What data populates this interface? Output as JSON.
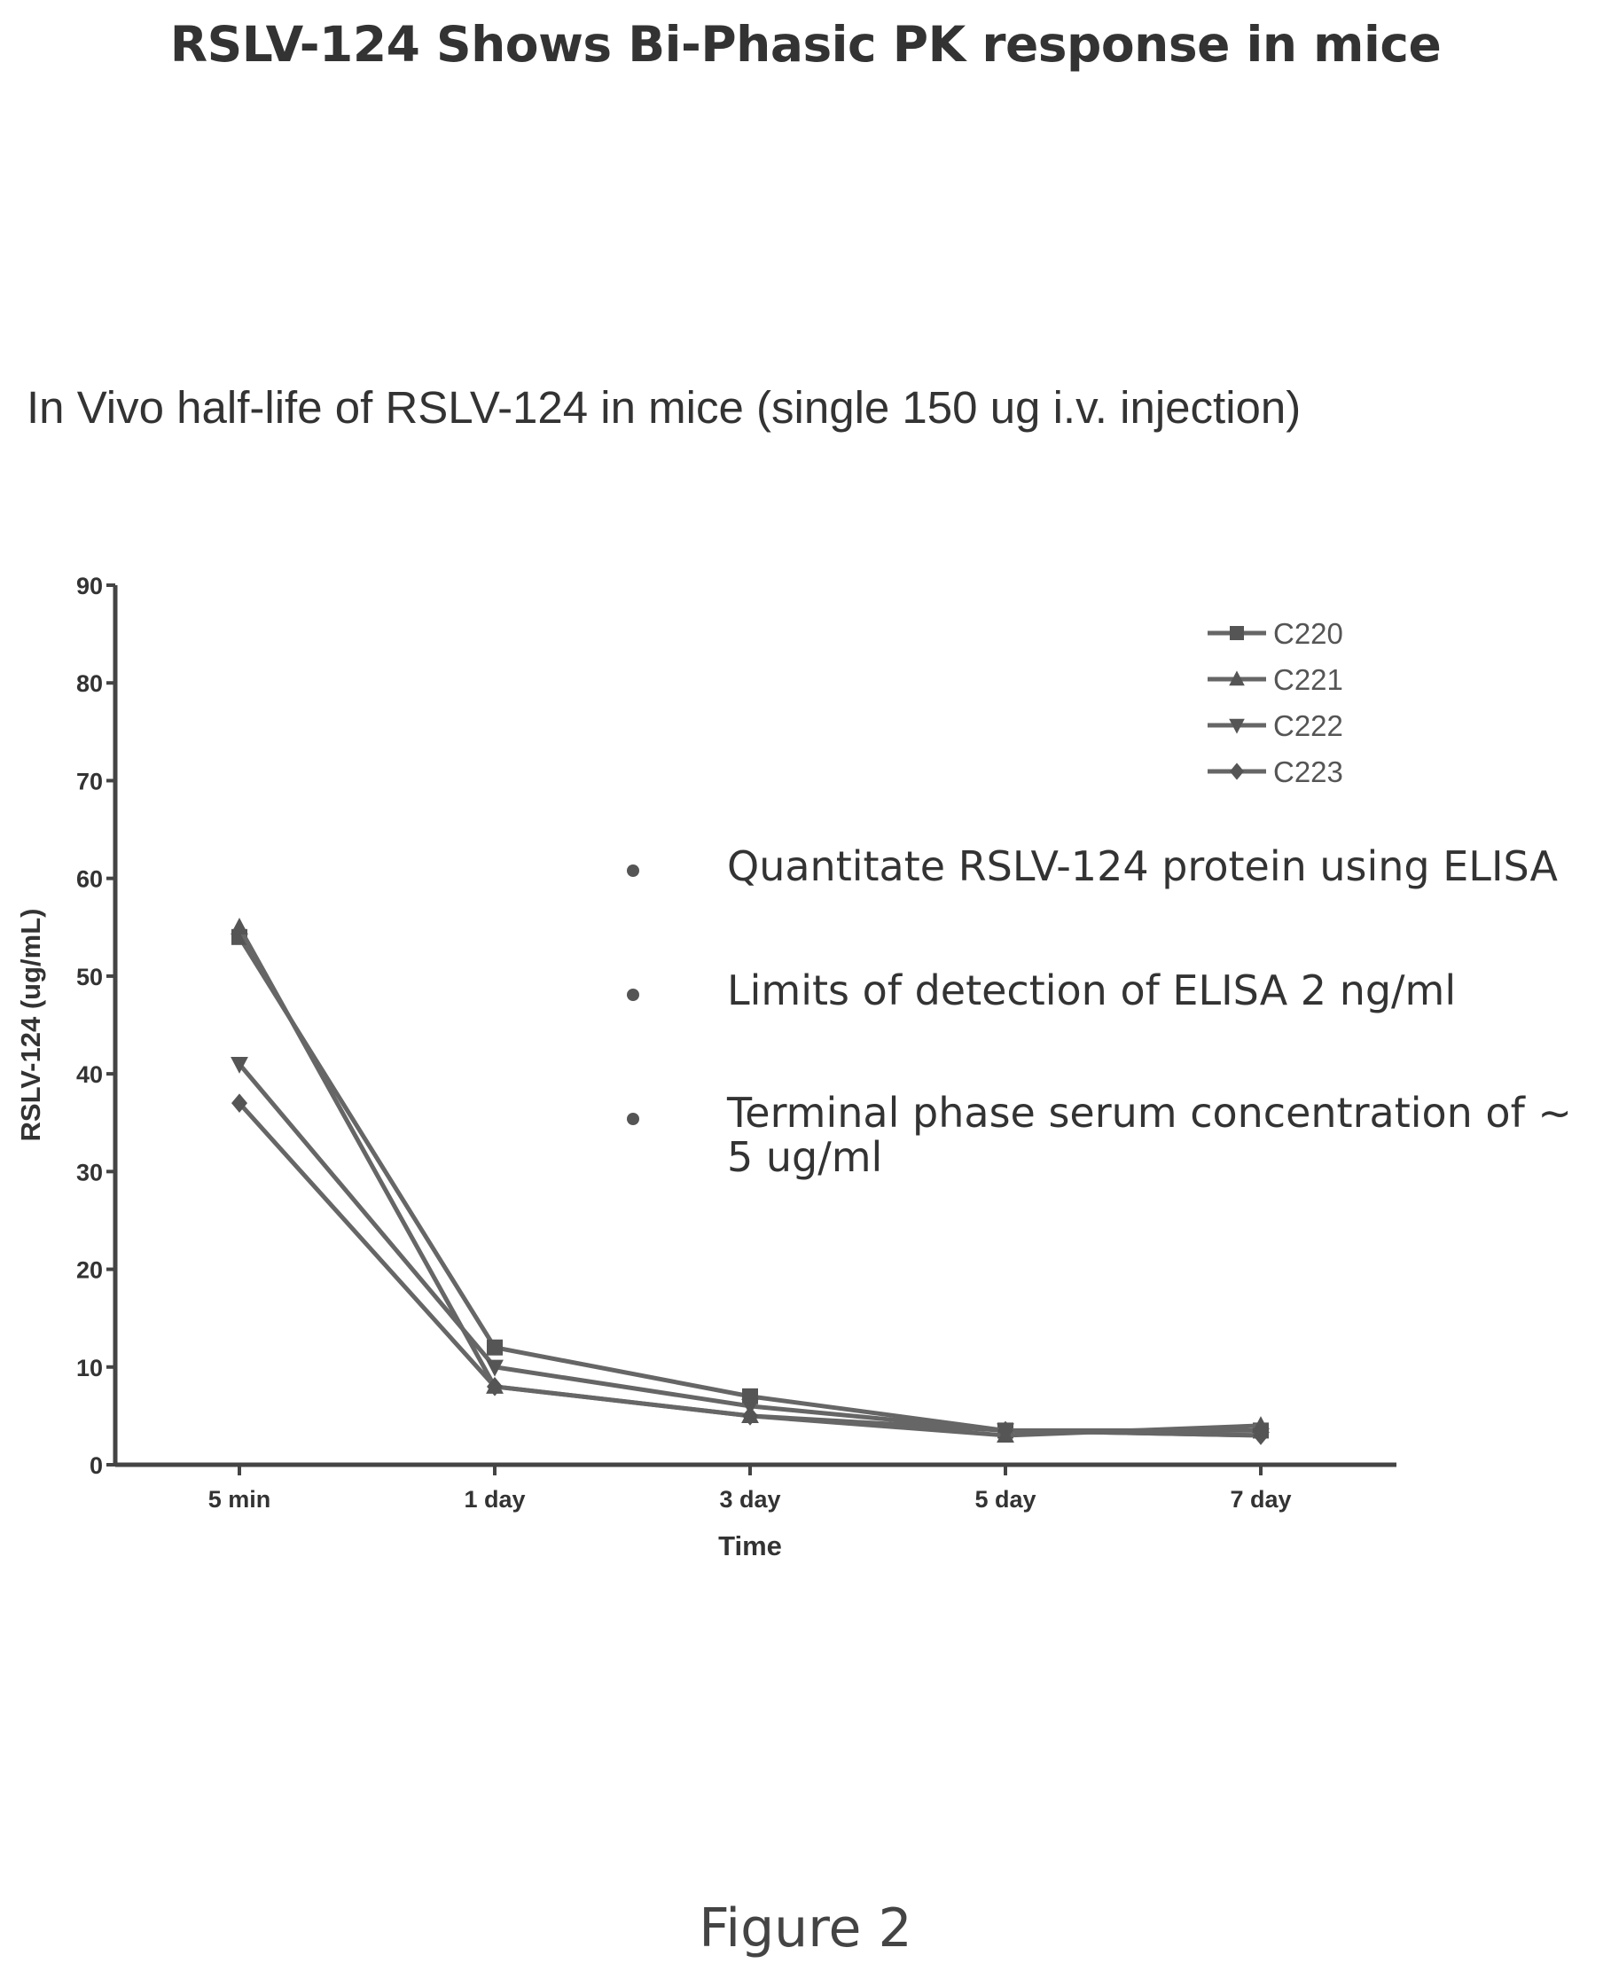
{
  "page": {
    "title": "RSLV-124 Shows Bi-Phasic PK response in mice",
    "subtitle": "In Vivo half-life of RSLV-124 in mice (single 150 ug i.v. injection)",
    "notes": [
      "Quantitate RSLV-124 protein   using ELISA",
      "Limits of detection of ELISA 2 ng/ml",
      "Terminal phase serum concentration of ~ 5 ug/ml"
    ],
    "figure_caption": "Figure  2"
  },
  "chart_data": {
    "type": "line",
    "xlabel": "Time",
    "ylabel": "RSLV-124 (ug/mL)",
    "categories": [
      "5 min",
      "1 day",
      "3 day",
      "5 day",
      "7 day"
    ],
    "ylim": [
      0,
      90
    ],
    "yticks": [
      0,
      10,
      20,
      30,
      40,
      50,
      60,
      70,
      80,
      90
    ],
    "grid": false,
    "legend_position": "top-right",
    "series": [
      {
        "name": "C220",
        "marker": "square",
        "values": [
          54,
          12,
          7,
          3.5,
          3.5
        ]
      },
      {
        "name": "C221",
        "marker": "triangle-up",
        "values": [
          55,
          8,
          5,
          3,
          4
        ]
      },
      {
        "name": "C222",
        "marker": "triangle-down",
        "values": [
          41,
          10,
          6,
          3.5,
          3
        ]
      },
      {
        "name": "C223",
        "marker": "diamond",
        "values": [
          37,
          8,
          5,
          3.5,
          3
        ]
      }
    ],
    "colors": {
      "line": "#666666",
      "marker": "#555555"
    }
  }
}
